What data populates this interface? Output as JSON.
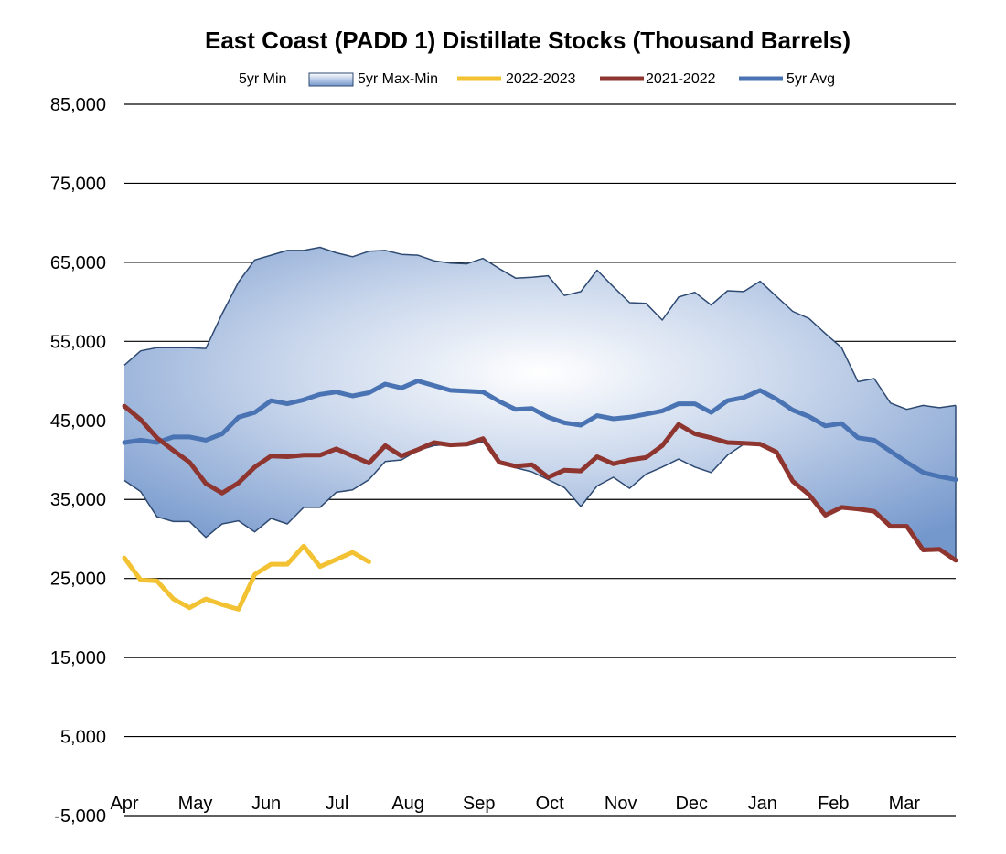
{
  "chart_data": {
    "type": "line",
    "title": "East Coast (PADD 1) Distillate Stocks (Thousand Barrels)",
    "xlabel": "",
    "ylabel": "",
    "ylim": [
      -5000,
      85000
    ],
    "y_ticks": [
      85000,
      75000,
      65000,
      55000,
      45000,
      35000,
      25000,
      15000,
      5000,
      -5000
    ],
    "y_tick_labels": [
      "85,000",
      "75,000",
      "65,000",
      "55,000",
      "45,000",
      "35,000",
      "25,000",
      "15,000",
      "5,000",
      "-5,000"
    ],
    "x_weeks": 52,
    "month_labels": [
      "Apr",
      "May",
      "Jun",
      "Jul",
      "Aug",
      "Sep",
      "Oct",
      "Nov",
      "Dec",
      "Jan",
      "Feb",
      "Mar"
    ],
    "month_week_positions": [
      0,
      4.35,
      8.7,
      13.05,
      17.4,
      21.75,
      26.1,
      30.45,
      34.8,
      39.15,
      43.5,
      47.85
    ],
    "legend": [
      {
        "name": "5yr Min",
        "style": "none"
      },
      {
        "name": "5yr Max-Min",
        "style": "band"
      },
      {
        "name": "2022-2023",
        "style": "line",
        "color": "#F2C233"
      },
      {
        "name": "2021-2022",
        "style": "line",
        "color": "#8E3530"
      },
      {
        "name": "5yr Avg",
        "style": "line",
        "color": "#4A73B3"
      }
    ],
    "series": [
      {
        "name": "5yr Max",
        "values": [
          52000,
          53800,
          54200,
          54200,
          54200,
          54100,
          58500,
          62500,
          65300,
          65900,
          66500,
          66500,
          66900,
          66200,
          65700,
          66400,
          66500,
          66000,
          65900,
          65200,
          64900,
          64800,
          65500,
          64200,
          63000,
          63100,
          63300,
          60800,
          61300,
          64000,
          61900,
          59900,
          59800,
          57700,
          60600,
          61200,
          59600,
          61400,
          61300,
          62600,
          60700,
          58800,
          57900,
          56000,
          54200,
          49900,
          50300,
          47200,
          46400,
          46900,
          46600,
          46900
        ]
      },
      {
        "name": "5yr Min",
        "values": [
          37400,
          36000,
          32800,
          32200,
          32200,
          30200,
          31900,
          32300,
          30900,
          32600,
          31900,
          34000,
          34000,
          35900,
          36200,
          37500,
          39800,
          40000,
          41200,
          41800,
          42000,
          41800,
          42300,
          39600,
          39000,
          38500,
          37500,
          36500,
          34100,
          36700,
          37800,
          36400,
          38200,
          39100,
          40100,
          39100,
          38400,
          40600,
          42000,
          42200,
          41000,
          37300,
          35500,
          33000,
          33900,
          33700,
          33300,
          31600,
          31600,
          28600,
          28700,
          27300
        ]
      },
      {
        "name": "5yr Avg",
        "color": "#4A73B3",
        "values": [
          42200,
          42500,
          42200,
          42900,
          42900,
          42500,
          43300,
          45400,
          46000,
          47500,
          47100,
          47600,
          48300,
          48600,
          48100,
          48500,
          49600,
          49100,
          50000,
          49400,
          48800,
          48700,
          48600,
          47400,
          46400,
          46500,
          45400,
          44700,
          44400,
          45600,
          45200,
          45400,
          45800,
          46200,
          47100,
          47100,
          46000,
          47500,
          47900,
          48800,
          47700,
          46300,
          45500,
          44300,
          44600,
          42800,
          42500,
          41100,
          39700,
          38400,
          37900,
          37500
        ]
      },
      {
        "name": "2021-2022",
        "color": "#8E3530",
        "values": [
          46800,
          45100,
          42800,
          41200,
          39700,
          37000,
          35800,
          37100,
          39100,
          40500,
          40400,
          40600,
          40600,
          41400,
          40500,
          39600,
          41800,
          40500,
          41300,
          42200,
          41900,
          42000,
          42700,
          39700,
          39200,
          39400,
          37800,
          38700,
          38600,
          40400,
          39500,
          40000,
          40300,
          41800,
          44500,
          43300,
          42800,
          42200,
          42100,
          42000,
          41000,
          37300,
          35600,
          33000,
          34000,
          33800,
          33500,
          31600,
          31600,
          28600,
          28700,
          27300
        ]
      },
      {
        "name": "2022-2023",
        "color": "#F2C233",
        "values": [
          27600,
          24800,
          24700,
          22400,
          21300,
          22400,
          21700,
          21100,
          25500,
          26800,
          26800,
          29100,
          26500,
          27400,
          28300,
          27100
        ]
      }
    ]
  }
}
